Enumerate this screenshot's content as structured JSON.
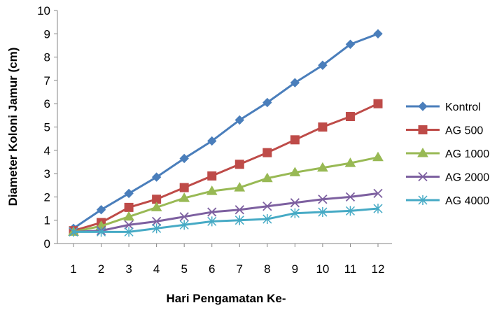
{
  "chart_data": {
    "type": "line",
    "title": "",
    "xlabel": "Hari Pengamatan Ke-",
    "ylabel": "Diameter Koloni Jamur (cm)",
    "x": [
      1,
      2,
      3,
      4,
      5,
      6,
      7,
      8,
      9,
      10,
      11,
      12
    ],
    "x_tick_labels": [
      "1",
      "2",
      "3",
      "4",
      "5",
      "6",
      "7",
      "8",
      "9",
      "10",
      "11",
      "12"
    ],
    "ylim": [
      0,
      10
    ],
    "y_ticks": [
      0,
      1,
      2,
      3,
      4,
      5,
      6,
      7,
      8,
      9,
      10
    ],
    "y_tick_labels": [
      "0",
      "1",
      "2",
      "3",
      "4",
      "5",
      "6",
      "7",
      "8",
      "9",
      "10"
    ],
    "grid": false,
    "legend_position": "right",
    "series": [
      {
        "name": "Kontrol",
        "color": "#4a7ebb",
        "marker": "diamond",
        "values": [
          0.65,
          1.45,
          2.15,
          2.85,
          3.65,
          4.4,
          5.3,
          6.05,
          6.9,
          7.65,
          8.55,
          9.0
        ]
      },
      {
        "name": "AG 500",
        "color": "#be4b48",
        "marker": "square",
        "values": [
          0.55,
          0.9,
          1.55,
          1.9,
          2.4,
          2.9,
          3.4,
          3.9,
          4.45,
          5.0,
          5.45,
          6.0
        ]
      },
      {
        "name": "AG 1000",
        "color": "#98b954",
        "marker": "triangle",
        "values": [
          0.5,
          0.75,
          1.15,
          1.55,
          1.95,
          2.25,
          2.4,
          2.8,
          3.05,
          3.25,
          3.45,
          3.7
        ]
      },
      {
        "name": "AG 2000",
        "color": "#7d60a0",
        "marker": "x",
        "values": [
          0.5,
          0.55,
          0.8,
          0.95,
          1.15,
          1.35,
          1.45,
          1.6,
          1.75,
          1.9,
          2.0,
          2.15
        ]
      },
      {
        "name": "AG 4000",
        "color": "#46aac5",
        "marker": "star",
        "values": [
          0.5,
          0.5,
          0.5,
          0.65,
          0.8,
          0.95,
          1.0,
          1.05,
          1.3,
          1.35,
          1.4,
          1.5
        ]
      }
    ]
  }
}
